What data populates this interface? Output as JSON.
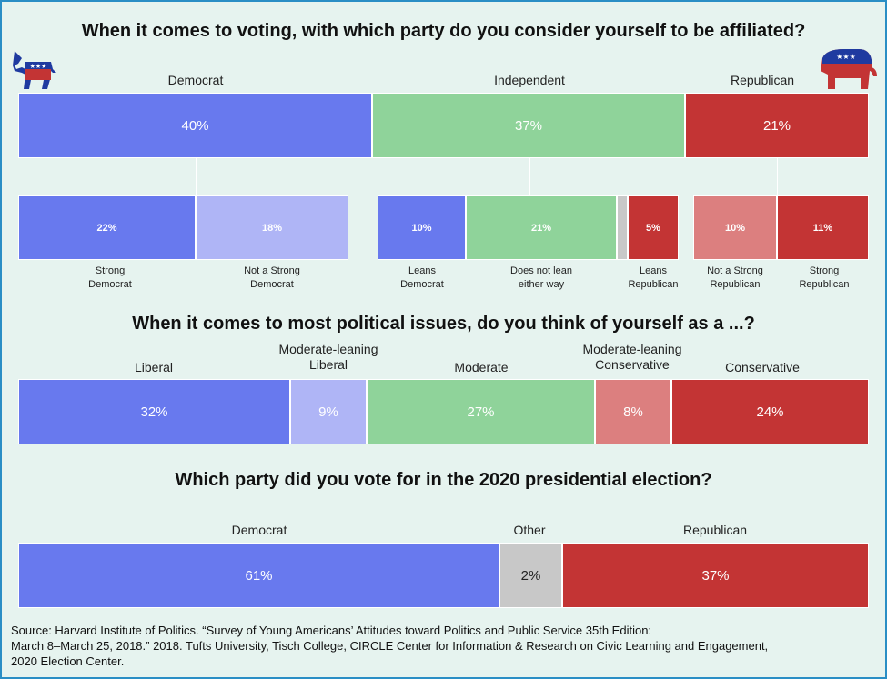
{
  "colors": {
    "democrat": "#6879ee",
    "democrat_light": "#afb5f6",
    "independent": "#8fd39a",
    "republican": "#c33434",
    "republican_light": "#dc7f7f",
    "neutral": "#c8c8c8"
  },
  "icons": {
    "left": "democrat-donkey-icon",
    "right": "republican-elephant-icon"
  },
  "source": {
    "line1": "Source: Harvard Institute of Politics. “Survey of Young Americans’ Attitudes toward Politics and Public Service 35th Edition:",
    "line2": "March 8–March 25, 2018.” 2018. Tufts University, Tisch College, CIRCLE Center for Information & Research on Civic Learning and Engagement,",
    "line3": "2020 Election Center."
  },
  "chart_data": [
    {
      "type": "bar",
      "orientation": "horizontal-stacked",
      "title": "When it comes to voting, with which party do you consider yourself to be affiliated?",
      "categories": [
        "Democrat",
        "Independent",
        "Republican"
      ],
      "values": [
        40,
        37,
        21
      ],
      "value_labels": [
        "40%",
        "37%",
        "21%"
      ],
      "breakdown": [
        {
          "category": "Democrat",
          "labels": [
            "Strong Democrat",
            "Not a Strong Democrat"
          ],
          "values": [
            22,
            18
          ],
          "value_labels": [
            "22%",
            "18%"
          ]
        },
        {
          "category": "Independent",
          "labels": [
            "Leans Democrat",
            "Does not lean either way",
            "Leans Republican"
          ],
          "values": [
            10,
            21,
            5
          ],
          "value_labels": [
            "10%",
            "21%",
            "5%"
          ]
        },
        {
          "category": "Republican",
          "labels": [
            "Not a Strong Republican",
            "Strong Republican"
          ],
          "values": [
            10,
            11
          ],
          "value_labels": [
            "10%",
            "11%"
          ]
        }
      ],
      "sub_label_lines": [
        [
          "Strong",
          "Democrat"
        ],
        [
          "Not a Strong",
          "Democrat"
        ],
        [
          "Leans",
          "Democrat"
        ],
        [
          "Does not lean",
          "either way"
        ],
        [
          "Leans",
          "Republican"
        ],
        [
          "Not a Strong",
          "Republican"
        ],
        [
          "Strong",
          "Republican"
        ]
      ]
    },
    {
      "type": "bar",
      "orientation": "horizontal-stacked",
      "title": "When it comes to most political issues, do you think of yourself as a ...?",
      "categories": [
        "Liberal",
        "Moderate-leaning Liberal",
        "Moderate",
        "Moderate-leaning Conservative",
        "Conservative"
      ],
      "category_lines": [
        [
          "Liberal"
        ],
        [
          "Moderate-leaning",
          "Liberal"
        ],
        [
          "Moderate"
        ],
        [
          "Moderate-leaning",
          "Conservative"
        ],
        [
          "Conservative"
        ]
      ],
      "values": [
        32,
        9,
        27,
        8,
        24
      ],
      "value_labels": [
        "32%",
        "9%",
        "27%",
        "8%",
        "24%"
      ]
    },
    {
      "type": "bar",
      "orientation": "horizontal-stacked",
      "title": "Which party did you vote for in the 2020 presidential election?",
      "categories": [
        "Democrat",
        "Other",
        "Republican"
      ],
      "values": [
        61,
        2,
        37
      ],
      "value_labels": [
        "61%",
        "2%",
        "37%"
      ]
    }
  ]
}
